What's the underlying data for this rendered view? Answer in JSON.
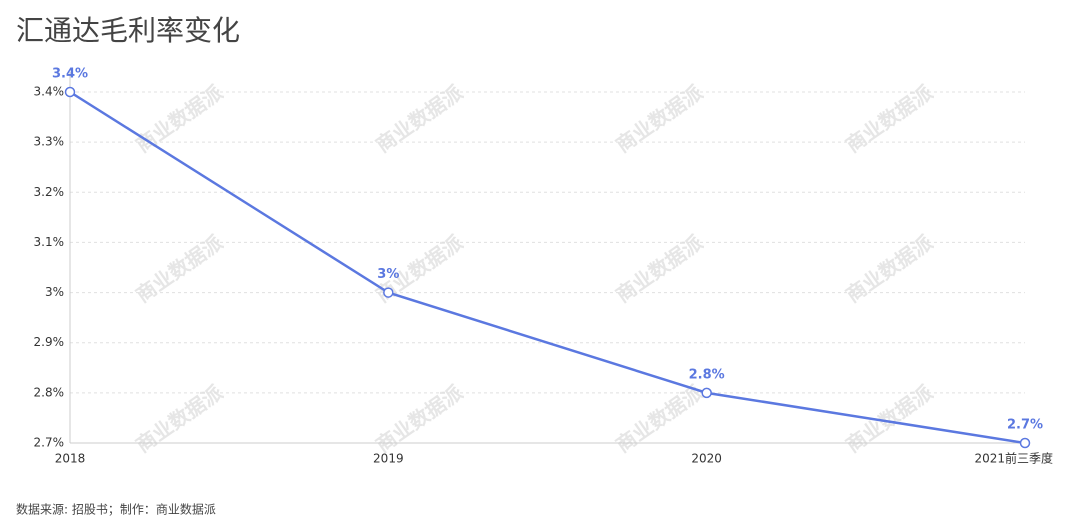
{
  "chart_data": {
    "type": "line",
    "title": "汇通达毛利率变化",
    "source": "数据来源: 招股书；制作：商业数据派",
    "watermark": "商业数据派",
    "categories": [
      "2018",
      "2019",
      "2020",
      "2021前三季度"
    ],
    "series": [
      {
        "name": "毛利率",
        "color": "#5b78e0",
        "values": [
          3.4,
          3,
          2.8,
          2.7
        ],
        "value_labels": [
          "3.4%",
          "3%",
          "2.8%",
          "2.7%"
        ]
      }
    ],
    "ylim": [
      2.7,
      3.4
    ],
    "yticks": [
      {
        "value": 2.7,
        "label": "2.7%"
      },
      {
        "value": 2.8,
        "label": "2.8%"
      },
      {
        "value": 2.9,
        "label": "2.9%"
      },
      {
        "value": 3,
        "label": "3%"
      },
      {
        "value": 3.1,
        "label": "3.1%"
      },
      {
        "value": 3.2,
        "label": "3.2%"
      },
      {
        "value": 3.3,
        "label": "3.3%"
      },
      {
        "value": 3.4,
        "label": "3.4%"
      }
    ],
    "grid": true
  }
}
